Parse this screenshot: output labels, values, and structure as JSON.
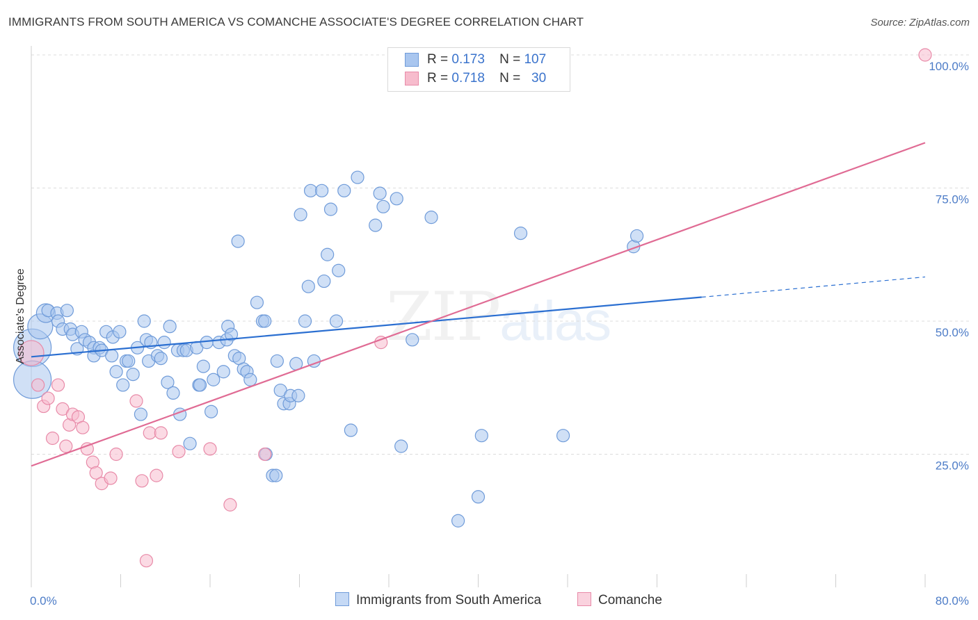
{
  "title": "IMMIGRANTS FROM SOUTH AMERICA VS COMANCHE ASSOCIATE'S DEGREE CORRELATION CHART",
  "source": "Source: ZipAtlas.com",
  "watermark": {
    "zip": "ZIP",
    "atlas": "atlas"
  },
  "legend": {
    "rows": [
      {
        "r_label": "R =",
        "r_value": "0.173",
        "n_label": "N =",
        "n_value": "107"
      },
      {
        "r_label": "R =",
        "r_value": "0.718",
        "n_label": "N =",
        "n_value": "30"
      }
    ]
  },
  "colors": {
    "blue_fill": "#a9c6ef",
    "blue_stroke": "#6f9bd9",
    "blue_line": "#2b6fd1",
    "pink_fill": "#f7bccd",
    "pink_stroke": "#e88aa8",
    "pink_line": "#e06b94",
    "grid": "#dcdcdc",
    "tick_text": "#4d7cc7"
  },
  "chart_data": {
    "type": "scatter",
    "title": "IMMIGRANTS FROM SOUTH AMERICA VS COMANCHE ASSOCIATE'S DEGREE CORRELATION CHART",
    "xlabel": "",
    "ylabel": "Associate's Degree",
    "xlim": [
      0,
      80
    ],
    "ylim": [
      0,
      100
    ],
    "x_tick_labels": {
      "min": "0.0%",
      "max": "80.0%"
    },
    "y_tick_labels": [
      {
        "value": 25,
        "label": "25.0%"
      },
      {
        "value": 50,
        "label": "50.0%"
      },
      {
        "value": 75,
        "label": "75.0%"
      },
      {
        "value": 100,
        "label": "100.0%"
      }
    ],
    "series": [
      {
        "name": "Immigrants from South America",
        "color": "#a9c6ef",
        "trend": {
          "x0": 0,
          "y0": 43.3,
          "x1": 60,
          "y1": 54.5,
          "dash_to_x": 80,
          "dash_to_y": 58.3
        },
        "points": [
          [
            0.1,
            45.0,
            3
          ],
          [
            0.1,
            39.0,
            3
          ],
          [
            0.8,
            49.0,
            2
          ],
          [
            1.3,
            51.5,
            1.5
          ],
          [
            1.5,
            52.0,
            1
          ],
          [
            2.3,
            51.5,
            1
          ],
          [
            2.4,
            50.0,
            1
          ],
          [
            2.8,
            48.5,
            1
          ],
          [
            3.2,
            52.0,
            1
          ],
          [
            3.5,
            48.5,
            1
          ],
          [
            3.7,
            47.5,
            1
          ],
          [
            4.1,
            44.8,
            1
          ],
          [
            4.5,
            48.0,
            1
          ],
          [
            4.8,
            46.5,
            1
          ],
          [
            5.2,
            46.0,
            1
          ],
          [
            5.6,
            45.0,
            1
          ],
          [
            5.6,
            43.5,
            1
          ],
          [
            6.1,
            45.0,
            1
          ],
          [
            6.3,
            44.5,
            1
          ],
          [
            6.7,
            48.0,
            1
          ],
          [
            7.2,
            43.5,
            1
          ],
          [
            7.3,
            47.0,
            1
          ],
          [
            7.6,
            40.5,
            1
          ],
          [
            7.9,
            48.0,
            1
          ],
          [
            8.2,
            38.0,
            1
          ],
          [
            8.5,
            42.5,
            1
          ],
          [
            8.7,
            42.5,
            1
          ],
          [
            9.1,
            40.0,
            1
          ],
          [
            9.5,
            45.0,
            1
          ],
          [
            9.8,
            32.5,
            1
          ],
          [
            10.1,
            50.0,
            1
          ],
          [
            10.3,
            46.5,
            1
          ],
          [
            10.5,
            42.5,
            1
          ],
          [
            10.7,
            46.0,
            1
          ],
          [
            11.3,
            43.5,
            1
          ],
          [
            11.6,
            43.0,
            1
          ],
          [
            11.9,
            46.0,
            1
          ],
          [
            12.2,
            38.5,
            1
          ],
          [
            12.4,
            49.0,
            1
          ],
          [
            12.7,
            36.5,
            1
          ],
          [
            13.1,
            44.5,
            1
          ],
          [
            13.3,
            32.5,
            1
          ],
          [
            13.6,
            44.5,
            1
          ],
          [
            13.9,
            44.5,
            1
          ],
          [
            14.2,
            27.0,
            1
          ],
          [
            14.8,
            45.0,
            1
          ],
          [
            15.0,
            38.0,
            1
          ],
          [
            15.1,
            38.0,
            1
          ],
          [
            15.4,
            41.5,
            1
          ],
          [
            15.7,
            46.0,
            1
          ],
          [
            16.1,
            33.0,
            1
          ],
          [
            16.3,
            39.0,
            1
          ],
          [
            16.8,
            46.0,
            1
          ],
          [
            17.2,
            40.5,
            1
          ],
          [
            17.5,
            46.5,
            1
          ],
          [
            17.6,
            49.0,
            1
          ],
          [
            17.9,
            47.5,
            1
          ],
          [
            18.2,
            43.5,
            1
          ],
          [
            18.5,
            65.0,
            1
          ],
          [
            18.6,
            43.0,
            1
          ],
          [
            19.0,
            41.0,
            1
          ],
          [
            19.3,
            40.5,
            1
          ],
          [
            19.6,
            39.0,
            1
          ],
          [
            20.2,
            53.5,
            1
          ],
          [
            20.7,
            50.0,
            1
          ],
          [
            20.9,
            50.0,
            1
          ],
          [
            21.0,
            25.0,
            1
          ],
          [
            21.6,
            21.0,
            1
          ],
          [
            21.9,
            21.0,
            1
          ],
          [
            22.0,
            42.5,
            1
          ],
          [
            22.3,
            37.0,
            1
          ],
          [
            22.6,
            34.5,
            1
          ],
          [
            23.1,
            34.5,
            1
          ],
          [
            23.2,
            36.0,
            1
          ],
          [
            23.7,
            42.0,
            1
          ],
          [
            23.9,
            36.0,
            1
          ],
          [
            24.1,
            70.0,
            1
          ],
          [
            24.5,
            50.0,
            1
          ],
          [
            24.8,
            56.5,
            1
          ],
          [
            25.0,
            74.5,
            1
          ],
          [
            25.3,
            42.5,
            1
          ],
          [
            26.0,
            74.5,
            1
          ],
          [
            26.2,
            57.5,
            1
          ],
          [
            26.5,
            62.5,
            1
          ],
          [
            26.8,
            71.0,
            1
          ],
          [
            27.3,
            50.0,
            1
          ],
          [
            27.5,
            59.5,
            1
          ],
          [
            28.0,
            74.5,
            1
          ],
          [
            28.6,
            29.5,
            1
          ],
          [
            29.2,
            77.0,
            1
          ],
          [
            30.8,
            68.0,
            1
          ],
          [
            31.2,
            74.0,
            1
          ],
          [
            31.5,
            71.5,
            1
          ],
          [
            32.7,
            73.0,
            1
          ],
          [
            33.1,
            26.5,
            1
          ],
          [
            34.1,
            46.5,
            1
          ],
          [
            35.8,
            69.5,
            1
          ],
          [
            38.2,
            12.5,
            1
          ],
          [
            40.0,
            17.0,
            1
          ],
          [
            40.3,
            28.5,
            1
          ],
          [
            43.8,
            66.5,
            1
          ],
          [
            47.6,
            28.5,
            1
          ],
          [
            53.9,
            64.0,
            1
          ],
          [
            54.2,
            66.0,
            1
          ]
        ]
      },
      {
        "name": "Comanche",
        "color": "#f7bccd",
        "trend": {
          "x0": 0,
          "y0": 22.8,
          "x1": 80,
          "y1": 83.5
        },
        "points": [
          [
            0.0,
            44.0,
            2
          ],
          [
            0.6,
            38.0,
            1
          ],
          [
            1.1,
            34.0,
            1
          ],
          [
            1.5,
            35.5,
            1
          ],
          [
            1.9,
            28.0,
            1
          ],
          [
            2.4,
            38.0,
            1
          ],
          [
            2.8,
            33.5,
            1
          ],
          [
            3.1,
            26.5,
            1
          ],
          [
            3.4,
            30.5,
            1
          ],
          [
            3.7,
            32.5,
            1
          ],
          [
            4.2,
            32.0,
            1
          ],
          [
            4.6,
            30.0,
            1
          ],
          [
            5.0,
            26.0,
            1
          ],
          [
            5.5,
            23.5,
            1
          ],
          [
            5.8,
            21.5,
            1
          ],
          [
            6.3,
            19.5,
            1
          ],
          [
            7.1,
            20.5,
            1
          ],
          [
            7.6,
            25.0,
            1
          ],
          [
            9.4,
            35.0,
            1
          ],
          [
            9.9,
            20.0,
            1
          ],
          [
            10.3,
            5.0,
            1
          ],
          [
            10.6,
            29.0,
            1
          ],
          [
            11.2,
            21.0,
            1
          ],
          [
            11.6,
            29.0,
            1
          ],
          [
            13.2,
            25.5,
            1
          ],
          [
            16.0,
            26.0,
            1
          ],
          [
            17.8,
            15.5,
            1
          ],
          [
            20.9,
            25.0,
            1
          ],
          [
            31.3,
            46.0,
            1
          ],
          [
            80.0,
            100.0,
            1
          ]
        ]
      }
    ],
    "legend_labels": [
      "Immigrants from South America",
      "Comanche"
    ]
  }
}
